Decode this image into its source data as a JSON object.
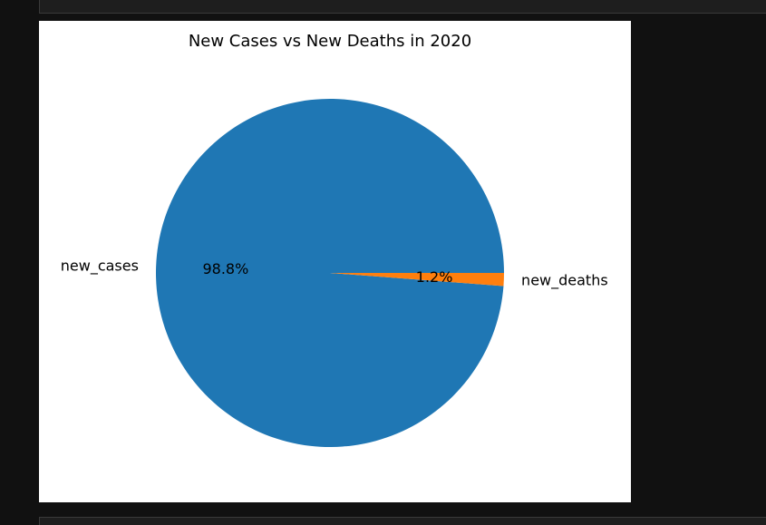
{
  "chart_data": {
    "type": "pie",
    "title": "New Cases vs New Deaths in 2020",
    "labels": [
      "new_cases",
      "new_deaths"
    ],
    "values": [
      98.8,
      1.2
    ],
    "pct_labels": [
      "98.8%",
      "1.2%"
    ],
    "colors": [
      "#1f77b4",
      "#ff7f0e"
    ]
  }
}
